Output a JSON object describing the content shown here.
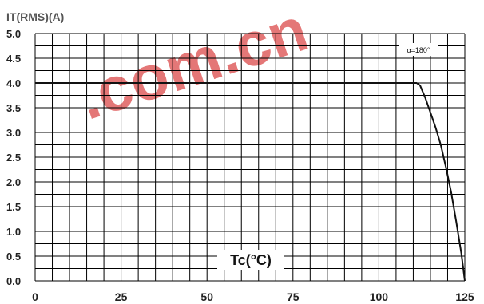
{
  "chart_data": {
    "type": "line",
    "title": "",
    "ylabel": "IT(RMS)(A)",
    "xlabel": "Tc(°C)",
    "annotation": "α=180°",
    "watermark": ".com.cn",
    "xlim": [
      0,
      125
    ],
    "ylim": [
      0,
      5.0
    ],
    "x_ticks": [
      "0",
      "25",
      "50",
      "75",
      "100",
      "125"
    ],
    "y_ticks": [
      "0.0",
      "0.5",
      "1.0",
      "1.5",
      "2.0",
      "2.5",
      "3.0",
      "3.5",
      "4.0",
      "4.5",
      "5.0"
    ],
    "grid": true,
    "series": [
      {
        "x": [
          0,
          110,
          111,
          112,
          113.5,
          115,
          116.5,
          118,
          119.5,
          121,
          122.5,
          124,
          125
        ],
        "y": [
          4.0,
          4.0,
          4.0,
          3.95,
          3.7,
          3.4,
          3.1,
          2.75,
          2.3,
          1.8,
          1.2,
          0.55,
          0.0
        ]
      }
    ],
    "colors": {
      "line": "#111111",
      "grid": "#000000",
      "watermark": "#e06060"
    }
  }
}
